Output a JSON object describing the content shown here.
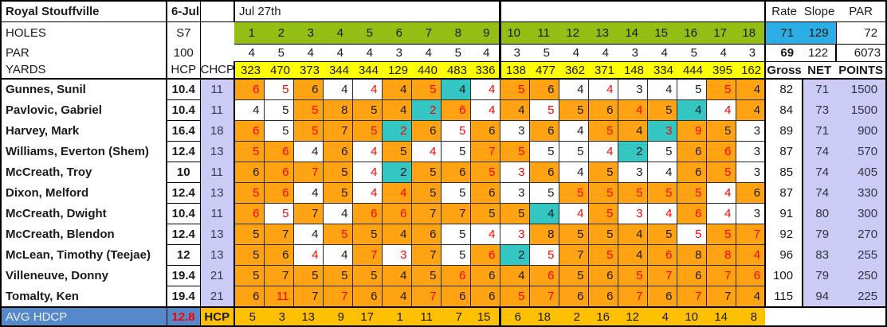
{
  "header": {
    "course": "Royal Stouffville",
    "date": "6-Jul",
    "round_date": "Jul 27th",
    "rate_label": "Rate",
    "slope_label": "Slope",
    "par_label": "PAR",
    "rate": "71",
    "slope": "129",
    "course_par": "72",
    "rate2": "69",
    "slope2": "122",
    "total_yards": "6073"
  },
  "row_labels": {
    "holes": "HOLES",
    "par": "PAR",
    "yards": "YARDS",
    "holes_value": "S7",
    "par_value": "100",
    "hcp": "HCP",
    "chcp": "CHCP",
    "gross": "Gross",
    "net": "NET",
    "points": "POINTS",
    "avg_hdcp": "AVG HDCP",
    "avg_value": "12.8",
    "hcp_row": "HCP"
  },
  "holes": [
    "1",
    "2",
    "3",
    "4",
    "5",
    "6",
    "7",
    "8",
    "9",
    "10",
    "11",
    "12",
    "13",
    "14",
    "15",
    "16",
    "17",
    "18"
  ],
  "par": [
    "4",
    "5",
    "4",
    "4",
    "4",
    "3",
    "4",
    "5",
    "4",
    "3",
    "5",
    "4",
    "4",
    "3",
    "4",
    "5",
    "4",
    "3"
  ],
  "yards": [
    "323",
    "470",
    "373",
    "344",
    "344",
    "129",
    "440",
    "483",
    "336",
    "138",
    "477",
    "362",
    "371",
    "148",
    "334",
    "444",
    "395",
    "162"
  ],
  "hole_hcp": [
    "5",
    "3",
    "13",
    "9",
    "17",
    "1",
    "11",
    "7",
    "15",
    "6",
    "18",
    "2",
    "16",
    "12",
    "4",
    "10",
    "14",
    "8"
  ],
  "players": [
    {
      "name": "Gunnes, Sunil",
      "hcp": "10.4",
      "chcp": "11",
      "s": [
        "6or",
        "5wr",
        "6ok",
        "4wk",
        "4wr",
        "4ok",
        "5or",
        "4tk",
        "4wr",
        "5or",
        "6ok",
        "4wk",
        "4wr",
        "3wk",
        "4wk",
        "5wk",
        "5or",
        "4ok"
      ],
      "gross": "82",
      "net": "71",
      "points": "1500"
    },
    {
      "name": "Pavlovic, Gabriel",
      "hcp": "10.4",
      "chcp": "11",
      "s": [
        "4wk",
        "5wk",
        "5or",
        "8ok",
        "5ok",
        "4ok",
        "2tr",
        "6or",
        "4wr",
        "4ok",
        "5wr",
        "5ok",
        "6ok",
        "4or",
        "5ok",
        "4tk",
        "4wr",
        "4ok"
      ],
      "gross": "84",
      "net": "73",
      "points": "1500"
    },
    {
      "name": "Harvey, Mark",
      "hcp": "16.4",
      "chcp": "18",
      "s": [
        "6or",
        "5wk",
        "5or",
        "7ok",
        "5or",
        "2tr",
        "6ok",
        "5wr",
        "6ok",
        "3wk",
        "6ok",
        "4wk",
        "5or",
        "4ok",
        "3tr",
        "9or",
        "5ok",
        "3wk"
      ],
      "gross": "89",
      "net": "71",
      "points": "900"
    },
    {
      "name": "Williams, Everton (Shem)",
      "hcp": "12.4",
      "chcp": "13",
      "s": [
        "5or",
        "6or",
        "4wk",
        "6ok",
        "4wr",
        "5ok",
        "4wr",
        "5wk",
        "7or",
        "5or",
        "5wk",
        "5wk",
        "4wr",
        "2tk",
        "5wk",
        "6ok",
        "6or",
        "3wk"
      ],
      "gross": "87",
      "net": "74",
      "points": "570"
    },
    {
      "name": "McCreath, Troy",
      "hcp": "10",
      "chcp": "11",
      "s": [
        "6ok",
        "6or",
        "7or",
        "5ok",
        "4wr",
        "2tk",
        "5ok",
        "6ok",
        "5or",
        "3wr",
        "6ok",
        "4wk",
        "5ok",
        "3wk",
        "4wk",
        "6ok",
        "5or",
        "3wk"
      ],
      "gross": "85",
      "net": "74",
      "points": "405"
    },
    {
      "name": "Dixon, Melford",
      "hcp": "12.4",
      "chcp": "13",
      "s": [
        "5or",
        "6or",
        "4wk",
        "5ok",
        "4wr",
        "4or",
        "5ok",
        "5wk",
        "6ok",
        "3wk",
        "5wk",
        "5or",
        "5or",
        "5or",
        "5or",
        "5or",
        "4wr",
        "6ok"
      ],
      "gross": "87",
      "net": "74",
      "points": "330"
    },
    {
      "name": "McCreath, Dwight",
      "hcp": "10.4",
      "chcp": "11",
      "s": [
        "6or",
        "5wr",
        "7ok",
        "4wk",
        "6or",
        "6or",
        "7ok",
        "7ok",
        "5ok",
        "5ok",
        "4tk",
        "4wr",
        "5or",
        "3wr",
        "4wr",
        "6or",
        "4wr",
        "3wk"
      ],
      "gross": "91",
      "net": "80",
      "points": "300"
    },
    {
      "name": "McCreath, Blendon",
      "hcp": "12.4",
      "chcp": "13",
      "s": [
        "5ok",
        "7ok",
        "4wk",
        "5or",
        "5ok",
        "4ok",
        "6ok",
        "5wk",
        "4wr",
        "3wr",
        "8ok",
        "5ok",
        "5ok",
        "4ok",
        "5ok",
        "5wr",
        "5or",
        "7or"
      ],
      "gross": "92",
      "net": "79",
      "points": "270"
    },
    {
      "name": "McLean, Timothy (Teejae)",
      "hcp": "12",
      "chcp": "13",
      "s": [
        "5ok",
        "6ok",
        "4wr",
        "4wk",
        "7or",
        "3wr",
        "7ok",
        "5wk",
        "6or",
        "2tk",
        "5wr",
        "7ok",
        "5or",
        "4ok",
        "6or",
        "8ok",
        "8or",
        "4or"
      ],
      "gross": "96",
      "net": "83",
      "points": "255"
    },
    {
      "name": "Villeneuve, Donny",
      "hcp": "19.4",
      "chcp": "21",
      "s": [
        "5ok",
        "7ok",
        "5ok",
        "5ok",
        "5ok",
        "4ok",
        "5ok",
        "6or",
        "6ok",
        "4ok",
        "6or",
        "5ok",
        "6ok",
        "5or",
        "7or",
        "6ok",
        "7or",
        "6or"
      ],
      "gross": "100",
      "net": "79",
      "points": "250"
    },
    {
      "name": "Tomalty, Ken",
      "hcp": "19.4",
      "chcp": "21",
      "s": [
        "6ok",
        "11or",
        "7ok",
        "7or",
        "6ok",
        "4ok",
        "7or",
        "6ok",
        "6ok",
        "5or",
        "7or",
        "6ok",
        "6ok",
        "7or",
        "6ok",
        "7or",
        "7ok",
        "4ok"
      ],
      "gross": "115",
      "net": "94",
      "points": "225"
    }
  ],
  "colors": {
    "hole_header_green": "#93BE14",
    "yards_yellow": "#FFFF00",
    "rate_blue": "#2BAEE5",
    "over_par_orange": "#FFA313",
    "birdie_teal": "#34C6C2",
    "lavender": "#CBCBF5",
    "hcp_gold": "#FFC000",
    "avg_row_blue": "#5589CB",
    "score_red": "#FF0000"
  },
  "score_cell_legend": {
    "bg_o": "orange fill",
    "bg_w": "white fill",
    "bg_t": "teal fill",
    "fg_k": "black text",
    "fg_r": "red text"
  }
}
